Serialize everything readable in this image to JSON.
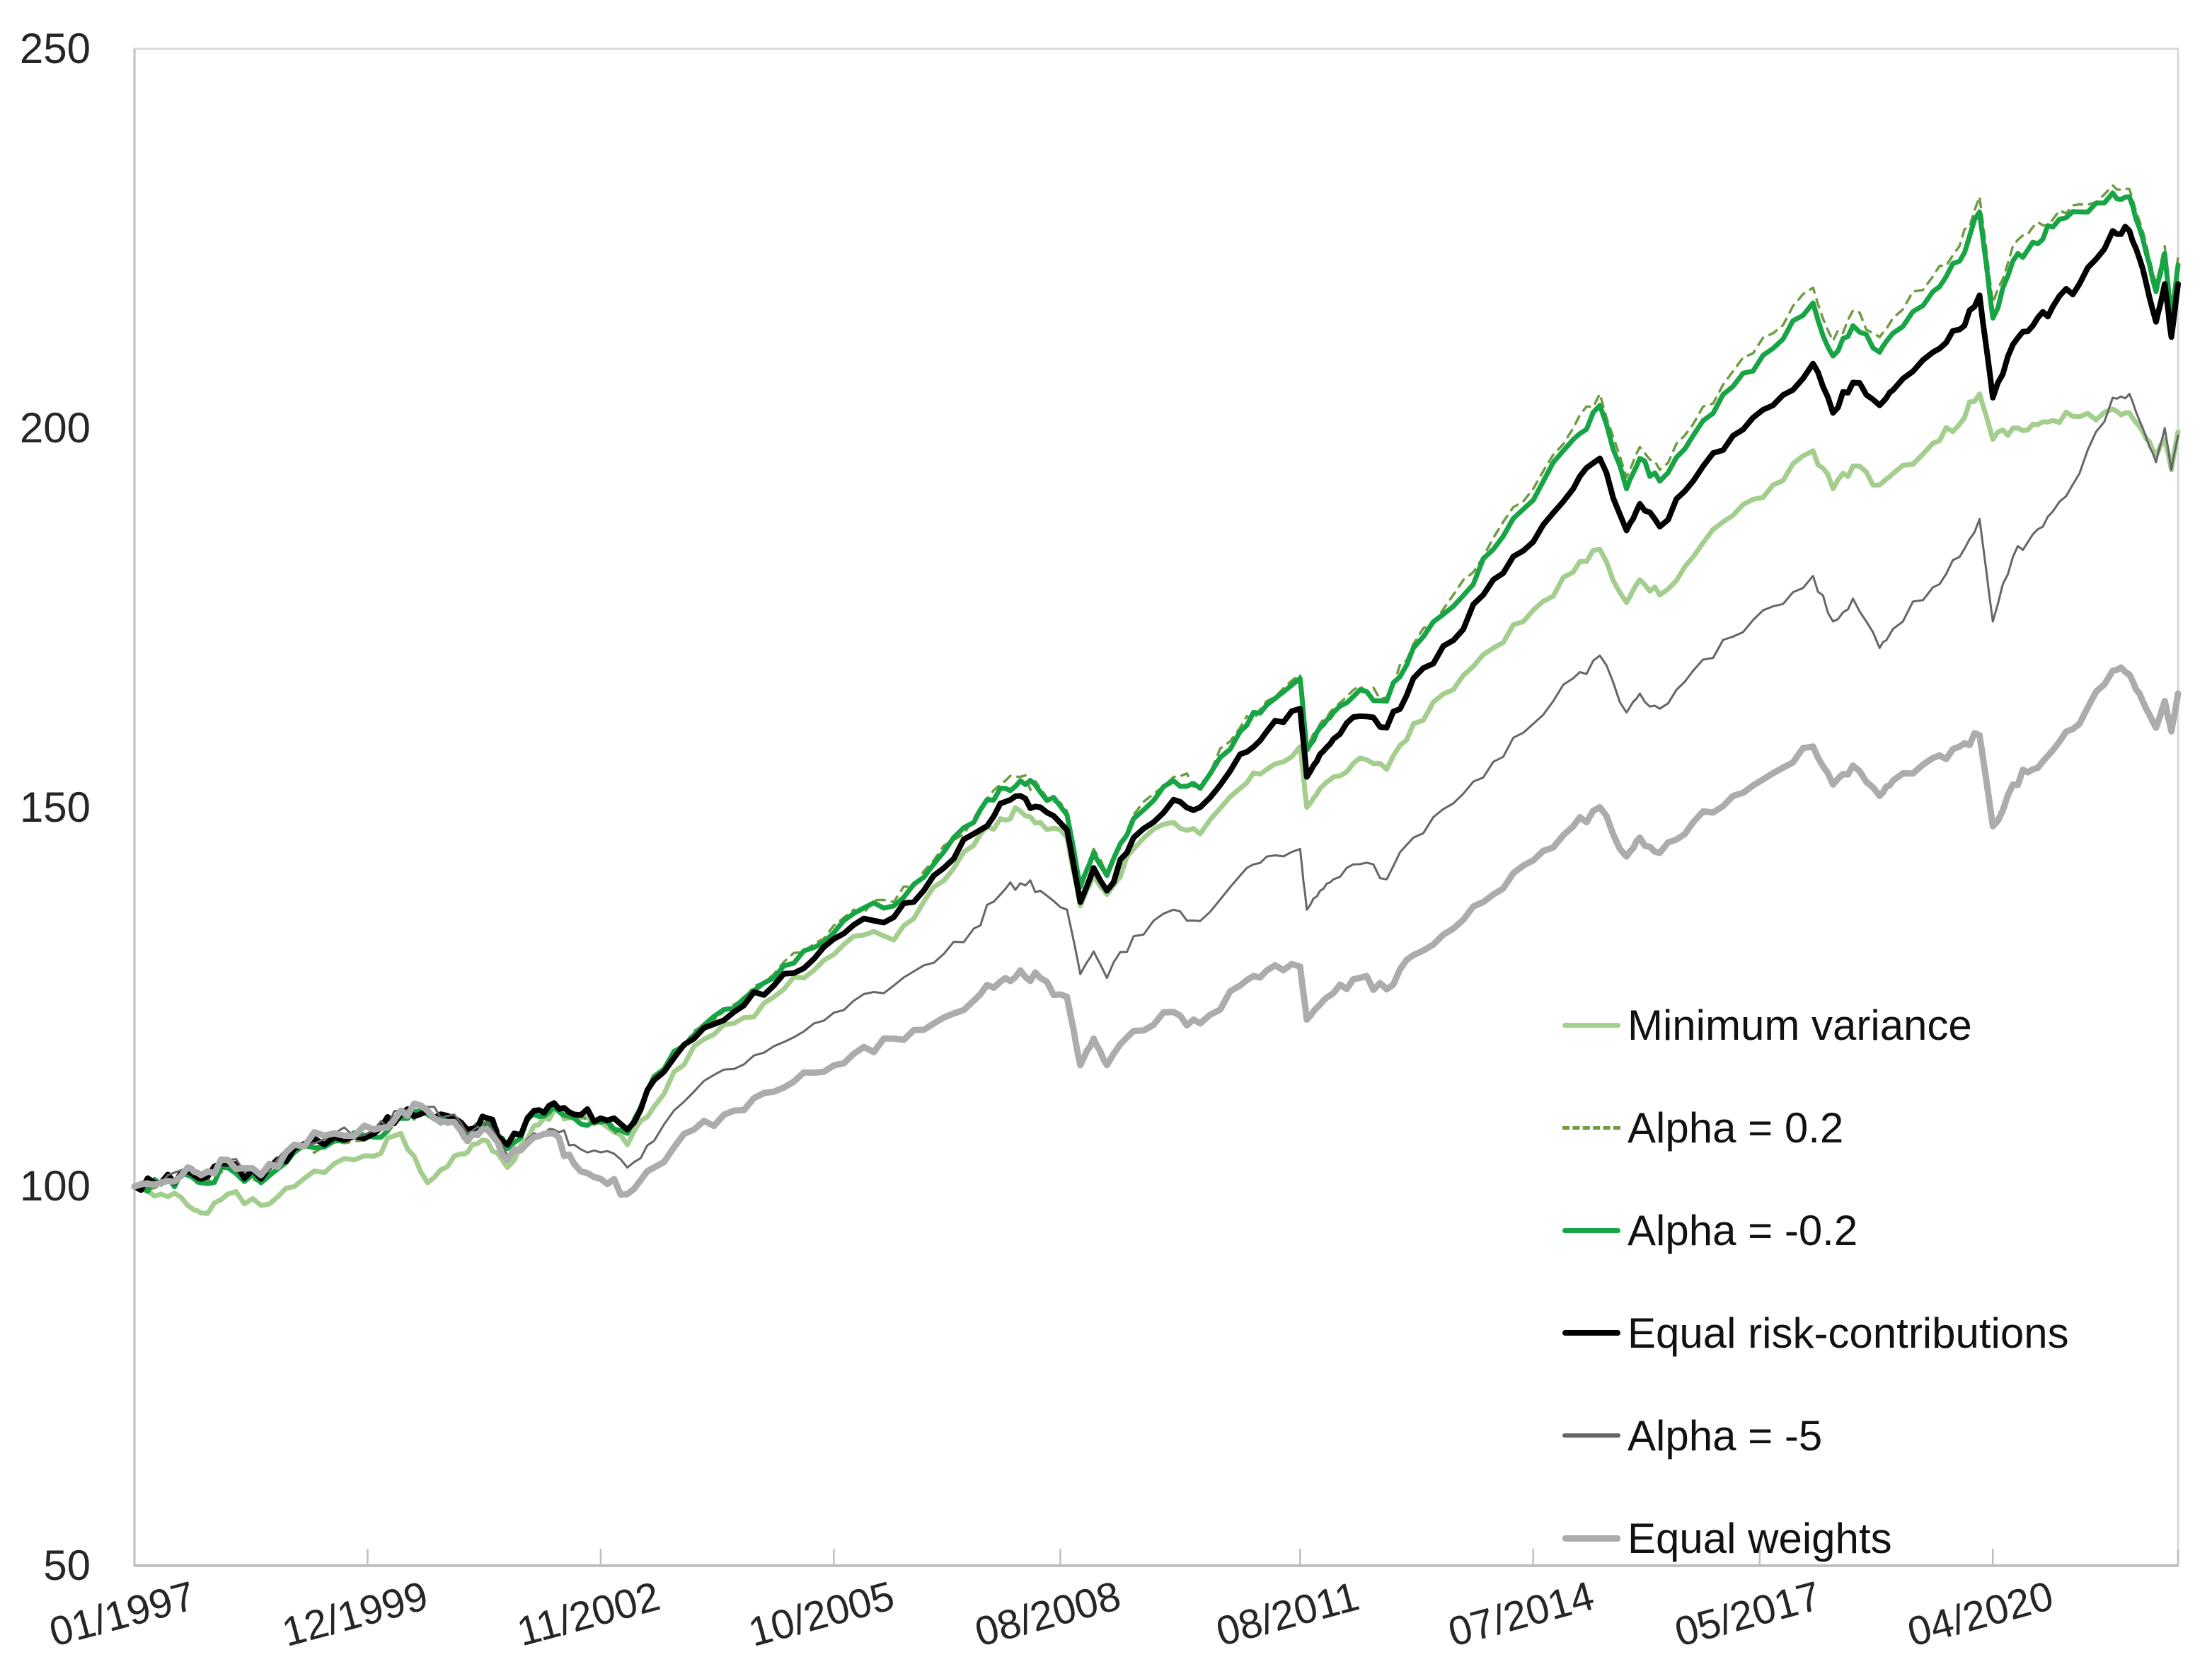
{
  "page": {
    "background": "#FFFFFF",
    "title": ""
  },
  "chart_data": {
    "type": "line",
    "title": "",
    "xlabel": "",
    "ylabel": "",
    "grid": false,
    "legend_position": "inside bottom-right",
    "x_axis": {
      "tick_labels": [
        "01/1997",
        "12/1999",
        "11/2002",
        "10/2005",
        "08/2008",
        "08/2011",
        "07/2014",
        "05/2017",
        "04/2020"
      ],
      "tick_months": [
        0,
        35,
        70,
        105,
        139,
        175,
        210,
        244,
        279
      ],
      "month_span": 306.8,
      "start": "01/1997"
    },
    "y_axis": {
      "ticks": [
        50,
        100,
        150,
        200,
        250
      ],
      "range": [
        50,
        250
      ]
    },
    "axis_color": "#BFBFBF",
    "border_color": "#D9D9D9",
    "months": [
      0,
      4,
      8,
      10,
      14,
      19,
      24,
      30,
      36,
      40,
      44,
      48,
      50,
      53,
      56,
      60,
      63,
      66,
      70,
      74,
      78,
      84,
      90,
      96,
      102,
      108,
      114,
      120,
      126,
      130,
      133,
      136,
      140,
      142,
      144,
      146,
      150,
      156,
      160,
      166,
      170,
      175,
      176,
      178,
      180,
      184,
      188,
      192,
      198,
      204,
      210,
      216,
      220,
      224,
      226,
      229,
      234,
      240,
      246,
      252,
      255,
      258,
      262,
      264,
      270,
      274,
      277,
      279,
      282,
      285,
      288,
      292,
      297,
      299.5,
      301.5,
      303.5,
      304.8,
      305.8,
      306.8
    ],
    "series": [
      {
        "name": "Minimum variance",
        "color": "#A4CE8E",
        "width": 7,
        "dash": null,
        "values": [
          100,
          99,
          97.5,
          96.5,
          99,
          97.5,
          100,
          103,
          104,
          107,
          100.5,
          104,
          104.5,
          106,
          102.5,
          108,
          110,
          109,
          108.5,
          105.5,
          110.5,
          118.5,
          121.5,
          125,
          128.5,
          133,
          132.5,
          139.5,
          145,
          148.5,
          149.5,
          148,
          146,
          137,
          141,
          138.5,
          144.5,
          148,
          146.5,
          152.5,
          155,
          158,
          150,
          152.5,
          154,
          156.5,
          155,
          161,
          165.5,
          171,
          176,
          181,
          184,
          177,
          180,
          178,
          183,
          188.5,
          192.5,
          197,
          192,
          195,
          192.5,
          194,
          198,
          200.5,
          204.5,
          198.5,
          200,
          200.5,
          201,
          201.5,
          202.5,
          202,
          199.5,
          196.5,
          198.5,
          194.5,
          199.5
        ]
      },
      {
        "name": "Alpha = 0.2",
        "color": "#6E9C42",
        "width": 3.5,
        "dash": "12 10",
        "values": [
          100,
          100.3,
          101.5,
          100.5,
          102.5,
          100.5,
          104.5,
          106,
          106.5,
          109,
          109.5,
          108.5,
          107,
          108.5,
          105,
          109.5,
          110.5,
          109,
          108.5,
          107,
          114.5,
          120.5,
          124,
          128,
          132,
          136.5,
          137.5,
          143,
          148.5,
          153,
          154,
          152.5,
          149.5,
          140,
          144.5,
          141.5,
          149,
          154,
          153,
          160.5,
          164,
          167.5,
          158,
          161,
          163,
          166,
          164.5,
          171.5,
          178,
          185.5,
          192,
          200,
          204.5,
          193.5,
          197.5,
          194.5,
          200.5,
          207.5,
          212.5,
          218.5,
          211.5,
          215.5,
          212,
          214.5,
          220,
          224,
          230.5,
          216.5,
          224,
          226.5,
          227.5,
          229.5,
          232,
          231.5,
          226,
          219,
          224,
          215.5,
          222.5
        ]
      },
      {
        "name": "Alpha = -0.2",
        "color": "#17A445",
        "width": 7,
        "dash": null,
        "values": [
          100,
          100.3,
          101.5,
          100.5,
          102.5,
          100.5,
          104.5,
          106,
          106.5,
          109,
          109.5,
          108.5,
          107,
          108.5,
          105,
          109.5,
          110.5,
          109,
          108.5,
          107,
          114.5,
          120,
          123.5,
          127.5,
          131.5,
          136,
          137,
          142.5,
          148,
          152.5,
          153.5,
          152,
          149,
          139.5,
          144,
          141,
          148.5,
          153.5,
          152.5,
          160,
          163.5,
          167,
          157.5,
          160.5,
          162.5,
          165.5,
          164,
          171,
          176.5,
          184,
          190.5,
          198.5,
          203,
          192,
          196,
          193,
          199,
          205.5,
          210.5,
          216.5,
          209.5,
          213.5,
          210,
          212.5,
          218,
          222,
          228.5,
          214.5,
          222,
          224.5,
          226.5,
          228.5,
          231,
          230.5,
          225,
          218,
          223,
          214.5,
          221.5
        ]
      },
      {
        "name": "Equal risk-contributions",
        "color": "#000000",
        "width": 8,
        "dash": null,
        "values": [
          100,
          100.5,
          102,
          101,
          103,
          101,
          105,
          106.5,
          107,
          109.5,
          110,
          109,
          107.5,
          109,
          105.5,
          110,
          111,
          109.5,
          109,
          107.5,
          114,
          119.5,
          123,
          126.5,
          130,
          134.5,
          135.5,
          141,
          146.5,
          150.5,
          151.5,
          150,
          147,
          137.5,
          142,
          139,
          146,
          151,
          150,
          157,
          160,
          163,
          154,
          157,
          159,
          162,
          160.5,
          167,
          172,
          180,
          185,
          192,
          196,
          186.5,
          190,
          187,
          193,
          199,
          203,
          208.5,
          202,
          206,
          203,
          205,
          210,
          213,
          217.5,
          204,
          211,
          213.5,
          216,
          219,
          226,
          226,
          221,
          214,
          219,
          212,
          219
        ]
      },
      {
        "name": "Alpha = -5",
        "color": "#666666",
        "width": 3,
        "dash": null,
        "values": [
          100,
          100.5,
          102.5,
          101.5,
          103.5,
          101.5,
          105.5,
          107,
          107.5,
          110,
          110.5,
          109.5,
          107,
          108.5,
          104,
          107,
          107.5,
          105.5,
          104.5,
          102.5,
          106,
          112.5,
          115.5,
          118.5,
          121.5,
          124.5,
          126.5,
          129.5,
          134,
          138.5,
          140,
          139,
          136.5,
          128,
          131,
          127.5,
          133,
          136.5,
          135,
          141,
          143.5,
          144.5,
          136.5,
          139,
          140.5,
          142.5,
          140.5,
          146,
          150.5,
          156,
          161,
          167,
          170,
          162.5,
          165,
          163,
          168,
          172.5,
          176.5,
          180.5,
          174.5,
          177.5,
          171,
          173.5,
          179,
          183,
          188,
          174.5,
          183,
          186,
          189,
          194,
          204,
          204.5,
          200,
          195.5,
          200,
          194.5,
          199
        ]
      },
      {
        "name": "Equal weights",
        "color": "#ACACAC",
        "width": 9,
        "dash": null,
        "values": [
          100,
          100.5,
          102.5,
          101.5,
          103.5,
          101.5,
          105.5,
          107,
          107.5,
          110,
          110,
          108.5,
          106,
          107.5,
          103.5,
          106.5,
          107,
          103,
          101,
          99,
          102.5,
          107.5,
          110,
          112.5,
          115,
          117.5,
          119.5,
          121.5,
          124.5,
          127,
          128.5,
          127.5,
          125,
          116,
          119.5,
          116,
          120.5,
          123,
          121.5,
          126.5,
          128.5,
          129,
          122,
          124,
          125.5,
          127.5,
          126,
          130.5,
          134,
          138.5,
          143,
          147.5,
          150,
          143.5,
          146,
          144,
          148,
          151.5,
          154.5,
          158,
          153,
          155.5,
          151.5,
          153.5,
          156.5,
          158,
          159.5,
          147.5,
          153,
          155,
          157.5,
          161,
          168,
          167.5,
          164,
          160.5,
          164,
          160,
          165
        ]
      }
    ]
  }
}
